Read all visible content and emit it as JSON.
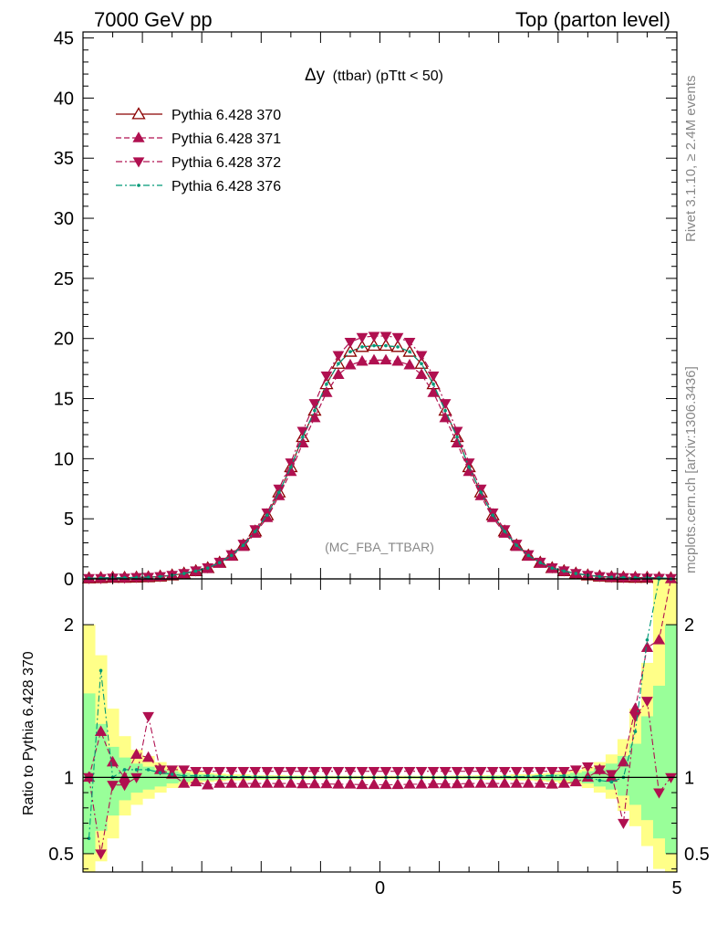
{
  "header": {
    "left": "7000 GeV pp",
    "right": "Top (parton level)"
  },
  "side_labels": {
    "rivet": "Rivet 3.1.10, ≥ 2.4M events",
    "mcplots": "mcplots.cern.ch [arXiv:1306.3436]"
  },
  "chart_data": [
    {
      "type": "line",
      "title_main": "Δy",
      "title_sub": "(ttbar) (pTtt < 50)",
      "watermark": "(MC_FBA_TTBAR)",
      "xlim": [
        -5,
        5
      ],
      "ylim": [
        0,
        45.5
      ],
      "yticks": [
        0,
        5,
        10,
        15,
        20,
        25,
        30,
        35,
        40,
        45
      ],
      "legend_placement": "top-left",
      "x": [
        -4.9,
        -4.7,
        -4.5,
        -4.3,
        -4.1,
        -3.9,
        -3.7,
        -3.5,
        -3.3,
        -3.1,
        -2.9,
        -2.7,
        -2.5,
        -2.3,
        -2.1,
        -1.9,
        -1.7,
        -1.5,
        -1.3,
        -1.1,
        -0.9,
        -0.7,
        -0.5,
        -0.3,
        -0.1,
        0.1,
        0.3,
        0.5,
        0.7,
        0.9,
        1.1,
        1.3,
        1.5,
        1.7,
        1.9,
        2.1,
        2.3,
        2.5,
        2.7,
        2.9,
        3.1,
        3.3,
        3.5,
        3.7,
        3.9,
        4.1,
        4.3,
        4.5,
        4.7,
        4.9
      ],
      "series": [
        {
          "name": "Pythia 6.428 370",
          "color": "#8b0000",
          "marker": "triangle-up-open",
          "dash": "solid",
          "values": [
            0.05,
            0.07,
            0.1,
            0.1,
            0.12,
            0.14,
            0.2,
            0.3,
            0.45,
            0.65,
            0.9,
            1.35,
            1.95,
            2.8,
            3.95,
            5.3,
            7.2,
            9.3,
            11.8,
            14.0,
            16.2,
            17.9,
            18.9,
            19.3,
            19.4,
            19.4,
            19.3,
            18.9,
            17.9,
            16.2,
            14.0,
            11.8,
            9.3,
            7.2,
            5.3,
            3.95,
            2.8,
            1.95,
            1.35,
            0.9,
            0.65,
            0.45,
            0.3,
            0.2,
            0.14,
            0.12,
            0.1,
            0.1,
            0.07,
            0.05
          ]
        },
        {
          "name": "Pythia 6.428 371",
          "color": "#b01050",
          "marker": "triangle-up-filled",
          "dash": "dashed",
          "values": [
            0.05,
            0.09,
            0.11,
            0.1,
            0.14,
            0.16,
            0.21,
            0.3,
            0.43,
            0.63,
            0.86,
            1.29,
            1.87,
            2.69,
            3.79,
            5.09,
            6.91,
            8.93,
            11.3,
            13.4,
            15.5,
            17.0,
            17.8,
            18.1,
            18.2,
            18.2,
            18.1,
            17.8,
            17.0,
            15.5,
            13.4,
            11.3,
            8.93,
            6.91,
            5.09,
            3.79,
            2.69,
            1.87,
            1.29,
            0.86,
            0.63,
            0.45,
            0.32,
            0.21,
            0.15,
            0.13,
            0.14,
            0.12,
            0.08,
            0.06
          ]
        },
        {
          "name": "Pythia 6.428 372",
          "color": "#b01050",
          "marker": "triangle-down-filled",
          "dash": "dashdot",
          "values": [
            0.05,
            0.05,
            0.09,
            0.09,
            0.13,
            0.15,
            0.21,
            0.31,
            0.47,
            0.68,
            0.94,
            1.41,
            2.03,
            2.91,
            4.11,
            5.51,
            7.49,
            9.67,
            12.3,
            14.6,
            16.9,
            18.6,
            19.7,
            20.1,
            20.2,
            20.2,
            20.1,
            19.7,
            18.6,
            16.9,
            14.6,
            12.3,
            9.67,
            7.49,
            5.51,
            4.11,
            2.91,
            2.03,
            1.41,
            0.94,
            0.68,
            0.47,
            0.31,
            0.21,
            0.15,
            0.12,
            0.1,
            0.08,
            0.07,
            0.05
          ]
        },
        {
          "name": "Pythia 6.428 376",
          "color": "#009977",
          "marker": "dot",
          "dash": "dashdot",
          "values": [
            0.05,
            0.08,
            0.1,
            0.1,
            0.12,
            0.14,
            0.2,
            0.3,
            0.45,
            0.65,
            0.9,
            1.35,
            1.95,
            2.8,
            3.95,
            5.3,
            7.2,
            9.3,
            11.8,
            14.0,
            16.2,
            17.9,
            18.9,
            19.3,
            19.4,
            19.4,
            19.3,
            18.9,
            17.9,
            16.2,
            14.0,
            11.8,
            9.3,
            7.2,
            5.3,
            3.95,
            2.8,
            1.95,
            1.35,
            0.9,
            0.65,
            0.45,
            0.3,
            0.2,
            0.14,
            0.12,
            0.1,
            0.1,
            0.08,
            0.05
          ]
        }
      ]
    },
    {
      "type": "line",
      "ylabel": "Ratio to Pythia 6.428 370",
      "xlim": [
        -5,
        5
      ],
      "ylim": [
        0.38,
        2.3
      ],
      "xticks": [
        0,
        5
      ],
      "yticks": [
        0.5,
        1,
        2
      ],
      "reference_line": 1,
      "bands": {
        "green": {
          "color": "#99ff99",
          "lo": [
            0.5,
            0.65,
            0.75,
            0.85,
            0.9,
            0.92,
            0.94,
            0.96,
            0.97,
            0.98,
            0.98,
            0.985,
            0.99,
            0.99,
            0.99,
            0.99,
            0.992,
            0.992,
            0.993,
            0.993,
            0.994,
            0.994,
            0.994,
            0.995,
            0.995,
            0.995,
            0.995,
            0.994,
            0.994,
            0.994,
            0.993,
            0.993,
            0.992,
            0.992,
            0.99,
            0.99,
            0.99,
            0.99,
            0.985,
            0.98,
            0.98,
            0.97,
            0.96,
            0.94,
            0.92,
            0.88,
            0.82,
            0.72,
            0.6,
            0.5
          ],
          "hi": [
            1.55,
            1.35,
            1.2,
            1.13,
            1.09,
            1.07,
            1.05,
            1.04,
            1.03,
            1.02,
            1.02,
            1.015,
            1.01,
            1.01,
            1.01,
            1.01,
            1.008,
            1.008,
            1.007,
            1.007,
            1.006,
            1.006,
            1.006,
            1.005,
            1.005,
            1.005,
            1.005,
            1.006,
            1.006,
            1.006,
            1.007,
            1.007,
            1.008,
            1.008,
            1.01,
            1.01,
            1.01,
            1.01,
            1.015,
            1.02,
            1.02,
            1.03,
            1.04,
            1.06,
            1.09,
            1.14,
            1.22,
            1.4,
            1.6,
            2.0
          ]
        },
        "yellow": {
          "color": "#ffff88",
          "lo": [
            0.3,
            0.45,
            0.6,
            0.75,
            0.82,
            0.86,
            0.9,
            0.93,
            0.95,
            0.96,
            0.97,
            0.975,
            0.98,
            0.98,
            0.985,
            0.985,
            0.985,
            0.988,
            0.988,
            0.99,
            0.99,
            0.99,
            0.99,
            0.99,
            0.99,
            0.99,
            0.99,
            0.99,
            0.99,
            0.99,
            0.99,
            0.988,
            0.988,
            0.985,
            0.985,
            0.985,
            0.98,
            0.98,
            0.975,
            0.97,
            0.96,
            0.95,
            0.93,
            0.9,
            0.86,
            0.78,
            0.68,
            0.55,
            0.4,
            0.3
          ],
          "hi": [
            2.0,
            1.8,
            1.45,
            1.27,
            1.18,
            1.14,
            1.1,
            1.07,
            1.05,
            1.04,
            1.03,
            1.025,
            1.02,
            1.02,
            1.015,
            1.015,
            1.015,
            1.012,
            1.012,
            1.01,
            1.01,
            1.01,
            1.01,
            1.01,
            1.01,
            1.01,
            1.01,
            1.01,
            1.01,
            1.01,
            1.01,
            1.012,
            1.012,
            1.015,
            1.015,
            1.015,
            1.02,
            1.02,
            1.025,
            1.03,
            1.04,
            1.05,
            1.07,
            1.1,
            1.15,
            1.25,
            1.45,
            1.75,
            2.3,
            2.3
          ]
        }
      },
      "series": [
        {
          "name": "Pythia 6.428 371",
          "color": "#b01050",
          "marker": "triangle-up-filled",
          "dash": "dashed",
          "values": [
            1.0,
            1.3,
            1.1,
            1.0,
            1.15,
            1.13,
            1.05,
            1.02,
            0.96,
            0.97,
            0.95,
            0.96,
            0.96,
            0.96,
            0.96,
            0.96,
            0.96,
            0.96,
            0.957,
            0.957,
            0.957,
            0.955,
            0.955,
            0.952,
            0.952,
            0.952,
            0.952,
            0.955,
            0.955,
            0.957,
            0.957,
            0.957,
            0.96,
            0.96,
            0.96,
            0.96,
            0.96,
            0.96,
            0.96,
            0.955,
            0.96,
            0.97,
            1.0,
            1.05,
            1.0,
            1.1,
            1.45,
            1.85,
            1.9,
            2.3
          ]
        },
        {
          "name": "Pythia 6.428 372",
          "color": "#b01050",
          "marker": "triangle-down-filled",
          "dash": "dashdot",
          "values": [
            1.0,
            0.5,
            0.95,
            0.95,
            1.0,
            1.4,
            1.05,
            1.05,
            1.05,
            1.04,
            1.04,
            1.04,
            1.04,
            1.04,
            1.04,
            1.04,
            1.04,
            1.04,
            1.04,
            1.04,
            1.04,
            1.04,
            1.04,
            1.04,
            1.04,
            1.04,
            1.04,
            1.04,
            1.04,
            1.04,
            1.04,
            1.04,
            1.04,
            1.04,
            1.04,
            1.04,
            1.04,
            1.04,
            1.04,
            1.04,
            1.04,
            1.05,
            1.07,
            1.05,
            1.02,
            0.7,
            1.4,
            1.5,
            0.9,
            1.0
          ]
        },
        {
          "name": "Pythia 6.428 376",
          "color": "#009977",
          "marker": "dot",
          "dash": "dashdot",
          "values": [
            0.6,
            1.7,
            1.0,
            1.05,
            1.05,
            1.05,
            1.03,
            1.02,
            1.01,
            1.01,
            1.01,
            1.005,
            1.005,
            1.005,
            1.005,
            1.0,
            1.0,
            1.0,
            1.0,
            1.0,
            1.0,
            1.0,
            1.0,
            1.0,
            1.0,
            1.0,
            1.0,
            1.0,
            1.0,
            1.0,
            1.0,
            1.0,
            1.0,
            1.0,
            1.0,
            1.005,
            1.005,
            1.005,
            1.01,
            1.01,
            1.01,
            1.0,
            1.0,
            0.98,
            0.97,
            1.0,
            1.3,
            1.9,
            2.3,
            2.3
          ]
        }
      ]
    }
  ]
}
